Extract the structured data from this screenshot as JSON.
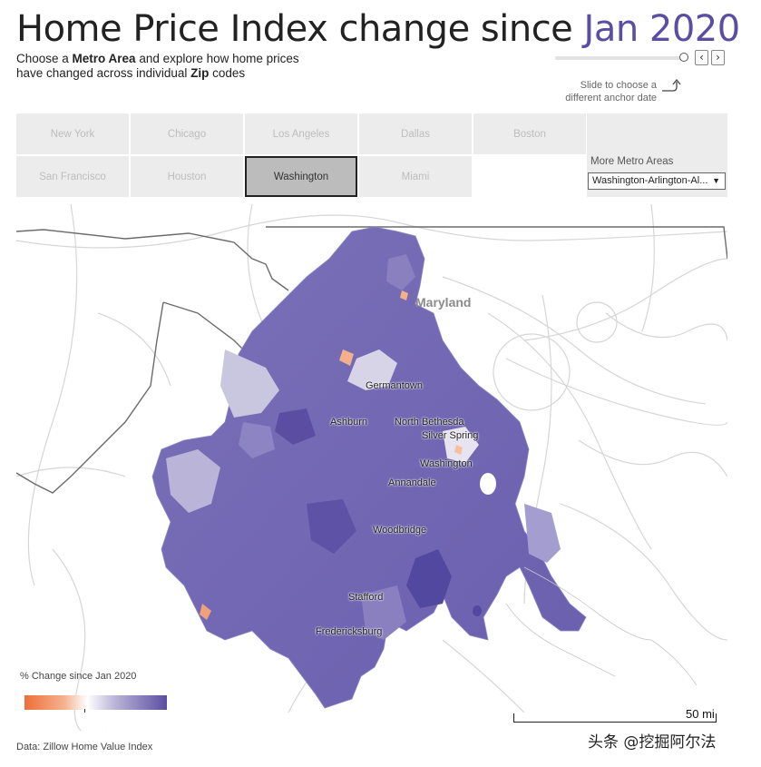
{
  "header": {
    "title_main": "Home Price Index change since ",
    "title_date": "Jan 2020",
    "subtitle_1": "Choose a ",
    "subtitle_metro": "Metro Area",
    "subtitle_2": " and explore how home prices",
    "subtitle_3": "have changed across individual ",
    "subtitle_zip": "Zip",
    "subtitle_4": " codes"
  },
  "anchor_slider": {
    "hint_line1": "Slide to choose a",
    "hint_line2": "different anchor date",
    "prev_icon": "chevron-left-icon",
    "next_icon": "chevron-right-icon",
    "prev_glyph": "‹",
    "next_glyph": "›"
  },
  "metros": {
    "row1": [
      "New York",
      "Chicago",
      "Los Angeles",
      "Dallas",
      "Boston"
    ],
    "row2": [
      "San Francisco",
      "Houston",
      "Washington",
      "Miami"
    ],
    "selected": "Washington",
    "more_label": "More Metro Areas",
    "more_value": "Washington-Arlington-Al...",
    "caret": "▼"
  },
  "map": {
    "state_label": "Maryland",
    "cities": [
      "Germantown",
      "Ashburn",
      "North Bethesda",
      "Silver Spring",
      "Washington",
      "Annandale",
      "Woodbridge",
      "Stafford",
      "Fredericksburg"
    ]
  },
  "legend": {
    "title": "% Change since Jan 2020",
    "colors": {
      "low": "#ee6f3a",
      "mid": "#ffffff",
      "high": "#5b4ea2"
    }
  },
  "scale": {
    "label": "50 mi"
  },
  "source": "Data: Zillow Home Value Index",
  "watermark": "头条 @挖掘阿尔法"
}
